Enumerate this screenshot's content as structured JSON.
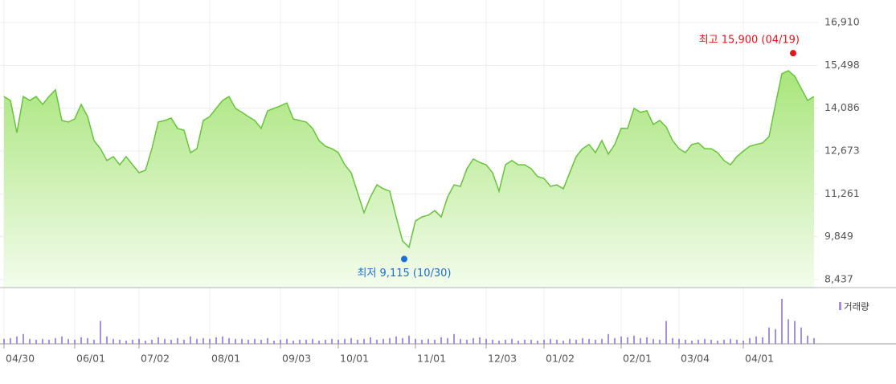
{
  "chart_data": {
    "type": "line",
    "categories": [
      "04/30",
      null,
      null,
      null,
      null,
      null,
      null,
      null,
      null,
      null,
      null,
      "06/01",
      null,
      null,
      null,
      null,
      null,
      null,
      null,
      null,
      null,
      "07/02",
      null,
      null,
      null,
      null,
      null,
      null,
      null,
      null,
      null,
      null,
      "08/01",
      null,
      null,
      null,
      null,
      null,
      null,
      null,
      null,
      null,
      null,
      "09/03",
      null,
      null,
      null,
      null,
      null,
      null,
      null,
      null,
      "10/01",
      null,
      null,
      null,
      null,
      null,
      null,
      null,
      null,
      null,
      null,
      null,
      "11/01",
      null,
      null,
      null,
      null,
      null,
      null,
      null,
      null,
      null,
      null,
      "12/03",
      null,
      null,
      null,
      null,
      null,
      null,
      null,
      null,
      "01/02",
      null,
      null,
      null,
      null,
      null,
      null,
      null,
      null,
      null,
      null,
      null,
      "02/01",
      null,
      null,
      null,
      null,
      null,
      null,
      null,
      null,
      "03/04",
      null,
      null,
      null,
      null,
      null,
      null,
      null,
      null,
      null,
      "04/01",
      null,
      null,
      null,
      null,
      null,
      null,
      null,
      null,
      null,
      null,
      null
    ],
    "series": [
      {
        "color": "#66c43a",
        "values": [
          14470,
          14340,
          13280,
          14470,
          14340,
          14470,
          14210,
          14470,
          14690,
          13680,
          13630,
          13730,
          14210,
          13810,
          13020,
          12750,
          12360,
          12490,
          12220,
          12490,
          12220,
          11960,
          12040,
          12750,
          13630,
          13680,
          13760,
          13420,
          13360,
          12620,
          12750,
          13680,
          13810,
          14080,
          14340,
          14470,
          14080,
          13950,
          13810,
          13680,
          13420,
          14000,
          14080,
          14160,
          14260,
          13730,
          13680,
          13630,
          13420,
          13020,
          12830,
          12750,
          12620,
          12220,
          11960,
          11300,
          10640,
          11160,
          11560,
          11430,
          11350,
          10500,
          9710,
          9500,
          10370,
          10500,
          10560,
          10710,
          10500,
          11160,
          11560,
          11510,
          12090,
          12410,
          12300,
          12220,
          11960,
          11350,
          12220,
          12360,
          12220,
          12220,
          12090,
          11830,
          11770,
          11510,
          11560,
          11430,
          11960,
          12490,
          12750,
          12890,
          12620,
          13020,
          12570,
          12890,
          13420,
          13420,
          14080,
          13950,
          14000,
          13550,
          13680,
          13470,
          13020,
          12750,
          12620,
          12890,
          12940,
          12750,
          12750,
          12620,
          12360,
          12220,
          12490,
          12670,
          12830,
          12890,
          12940,
          13150,
          14210,
          15220,
          15320,
          15140,
          14740,
          14340,
          14470
        ]
      },
      {
        "name": "거래량",
        "color": "#a48fd8",
        "panel": "volume",
        "values": [
          6,
          7,
          9,
          12,
          6,
          5,
          6,
          5,
          7,
          9,
          6,
          5,
          8,
          7,
          5,
          28,
          9,
          6,
          5,
          4,
          5,
          6,
          4,
          5,
          8,
          6,
          5,
          7,
          5,
          9,
          6,
          7,
          6,
          8,
          9,
          7,
          6,
          6,
          5,
          6,
          5,
          7,
          4,
          5,
          6,
          4,
          5,
          5,
          6,
          4,
          5,
          6,
          5,
          6,
          7,
          5,
          6,
          8,
          5,
          6,
          7,
          9,
          7,
          10,
          6,
          5,
          6,
          5,
          8,
          7,
          12,
          6,
          5,
          7,
          8,
          6,
          5,
          4,
          5,
          6,
          4,
          5,
          5,
          4,
          5,
          6,
          5,
          4,
          6,
          5,
          7,
          6,
          5,
          6,
          12,
          7,
          9,
          8,
          10,
          7,
          8,
          6,
          5,
          28,
          7,
          6,
          5,
          4,
          5,
          6,
          5,
          4,
          5,
          6,
          5,
          4,
          7,
          9,
          8,
          20,
          18,
          55,
          30,
          28,
          20,
          10,
          7
        ]
      }
    ],
    "ylim": [
      8437,
      16910
    ],
    "yticks": [
      {
        "value": 8437,
        "label": "8,437"
      },
      {
        "value": 9849,
        "label": "9,849"
      },
      {
        "value": 11261,
        "label": "11,261"
      },
      {
        "value": 12673,
        "label": "12,673"
      },
      {
        "value": 14086,
        "label": "14,086"
      },
      {
        "value": 15498,
        "label": "15,498"
      },
      {
        "value": 16910,
        "label": "16,910"
      }
    ],
    "grid": true,
    "annotations": [
      {
        "text": "최고 15,900 (04/19)",
        "value": 15900,
        "color": "#e8141b"
      },
      {
        "text": "최저 9,115 (10/30)",
        "value": 9115,
        "color": "#1a6fd6"
      }
    ]
  }
}
